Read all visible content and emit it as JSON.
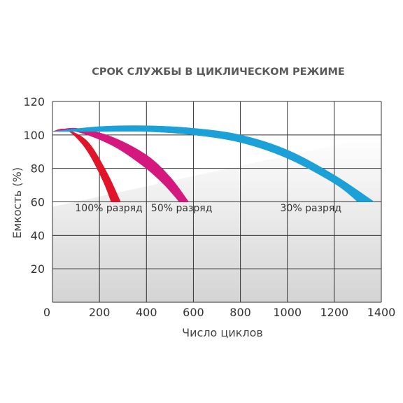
{
  "chart_data": {
    "type": "area",
    "title": "СРОК СЛУЖБЫ В ЦИКЛИЧЕСКОМ РЕЖИМЕ",
    "xlabel": "Число циклов",
    "ylabel": "Емкость (%)",
    "xlim": [
      0,
      1400
    ],
    "ylim": [
      0,
      120
    ],
    "x_ticks": [
      "0",
      "200",
      "400",
      "600",
      "800",
      "1000",
      "1200",
      "1400"
    ],
    "y_ticks": [
      "20",
      "40",
      "60",
      "80",
      "100",
      "120"
    ],
    "grid": true,
    "series": [
      {
        "name": "100% разряд",
        "color": "#e0152a",
        "upper": [
          [
            0,
            102
          ],
          [
            60,
            103
          ],
          [
            150,
            96
          ],
          [
            230,
            78
          ],
          [
            290,
            60
          ]
        ],
        "lower": [
          [
            0,
            102
          ],
          [
            60,
            103
          ],
          [
            140,
            92
          ],
          [
            210,
            74
          ],
          [
            250,
            60
          ]
        ]
      },
      {
        "name": "50% разряд",
        "color": "#d4187d",
        "upper": [
          [
            0,
            102
          ],
          [
            100,
            104
          ],
          [
            250,
            99
          ],
          [
            400,
            88
          ],
          [
            500,
            75
          ],
          [
            580,
            60
          ]
        ],
        "lower": [
          [
            0,
            102
          ],
          [
            100,
            102
          ],
          [
            250,
            94
          ],
          [
            380,
            82
          ],
          [
            470,
            71
          ],
          [
            540,
            60
          ]
        ]
      },
      {
        "name": "30% разряд",
        "color": "#1ca0d8",
        "upper": [
          [
            0,
            102
          ],
          [
            200,
            105
          ],
          [
            400,
            105.5
          ],
          [
            600,
            104
          ],
          [
            800,
            100
          ],
          [
            1000,
            91
          ],
          [
            1200,
            76
          ],
          [
            1370,
            60
          ]
        ],
        "lower": [
          [
            0,
            102
          ],
          [
            200,
            102
          ],
          [
            400,
            102
          ],
          [
            600,
            100
          ],
          [
            800,
            95.5
          ],
          [
            1000,
            86
          ],
          [
            1200,
            71
          ],
          [
            1300,
            60
          ]
        ]
      }
    ],
    "annotations": [
      {
        "text": "100% разряд",
        "x": 240,
        "y": 56
      },
      {
        "text": "50% разряд",
        "x": 550,
        "y": 56
      },
      {
        "text": "30% разряд",
        "x": 1100,
        "y": 56
      }
    ],
    "zero_label": "0"
  }
}
